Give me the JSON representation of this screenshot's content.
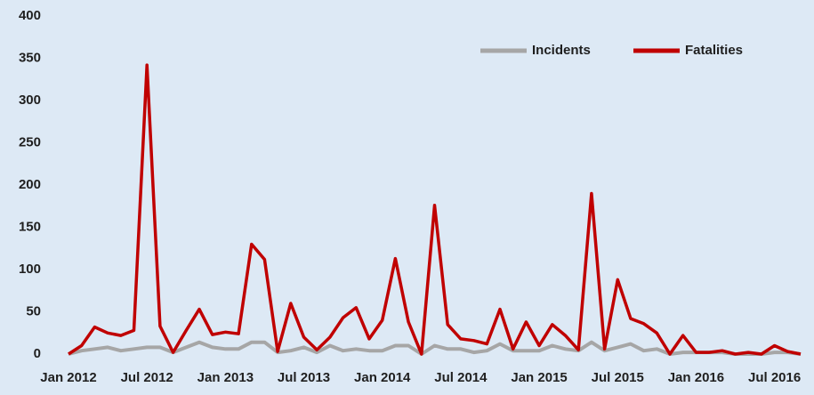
{
  "chart_data": {
    "type": "line",
    "categories": [
      "Jan 2012",
      null,
      null,
      null,
      null,
      null,
      "Jul 2012",
      null,
      null,
      null,
      null,
      null,
      "Jan 2013",
      null,
      null,
      null,
      null,
      null,
      "Jul 2013",
      null,
      null,
      null,
      null,
      null,
      "Jan 2014",
      null,
      null,
      null,
      null,
      null,
      "Jul 2014",
      null,
      null,
      null,
      null,
      null,
      "Jan 2015",
      null,
      null,
      null,
      null,
      null,
      "Jul 2015",
      null,
      null,
      null,
      null,
      null,
      "Jan 2016",
      null,
      null,
      null,
      null,
      null,
      "Jul 2016",
      null,
      null
    ],
    "series": [
      {
        "name": "Incidents",
        "color": "#a6a6a6",
        "values": [
          0,
          4,
          6,
          8,
          4,
          6,
          8,
          8,
          2,
          8,
          14,
          8,
          6,
          6,
          14,
          14,
          2,
          4,
          8,
          2,
          10,
          4,
          6,
          4,
          4,
          10,
          10,
          0,
          10,
          6,
          6,
          2,
          4,
          12,
          4,
          4,
          4,
          10,
          6,
          4,
          14,
          4,
          8,
          12,
          4,
          6,
          0,
          2,
          2,
          2,
          2,
          0,
          0,
          0,
          2,
          2,
          0
        ]
      },
      {
        "name": "Fatalities",
        "color": "#c00000",
        "values": [
          0,
          10,
          32,
          25,
          22,
          28,
          342,
          33,
          2,
          28,
          53,
          23,
          26,
          24,
          130,
          112,
          3,
          60,
          20,
          5,
          20,
          43,
          55,
          18,
          40,
          113,
          38,
          0,
          176,
          35,
          18,
          16,
          12,
          53,
          6,
          38,
          10,
          35,
          22,
          5,
          190,
          6,
          88,
          42,
          36,
          25,
          0,
          22,
          2,
          2,
          4,
          0,
          2,
          0,
          10,
          3,
          0
        ]
      }
    ],
    "ylim": [
      0,
      400
    ],
    "yticks": [
      0,
      50,
      100,
      150,
      200,
      250,
      300,
      350,
      400
    ]
  }
}
